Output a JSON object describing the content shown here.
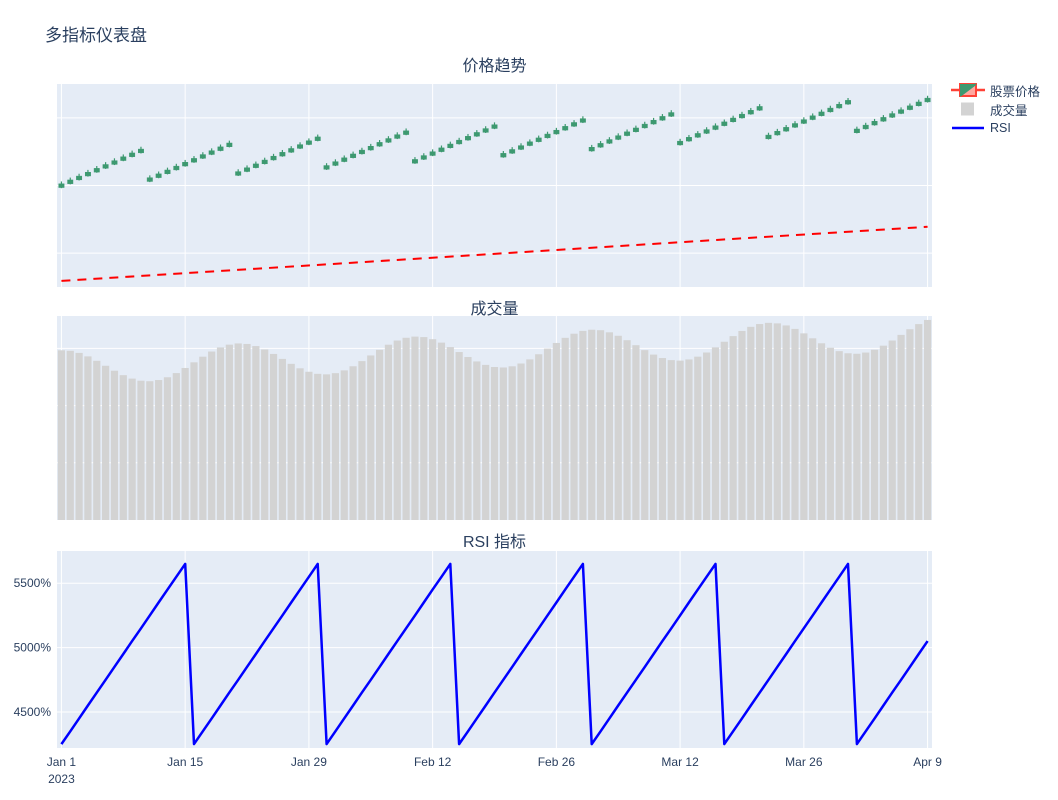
{
  "title": "多指标仪表盘",
  "colors": {
    "paper_bg": "#ffffff",
    "plot_bg": "#e5ecf6",
    "grid": "#ffffff",
    "text": "#2a3f5f",
    "candle_increasing": "#3d9970",
    "candle_decreasing": "#ff4136",
    "trend_line": "#ff0000",
    "volume_bar": "#d3d3d3",
    "rsi_line": "#0000ff"
  },
  "legend": {
    "items": [
      {
        "label": "股票价格",
        "marker": "candlestick-icon"
      },
      {
        "label": "成交量",
        "marker": "gray-bar-swatch"
      },
      {
        "label": "RSI",
        "marker": "blue-line-swatch"
      }
    ]
  },
  "x_axis": {
    "start_date": "Jan 1 2023",
    "end_date": "Apr 9 2023",
    "range": [
      -0.5,
      98.5
    ],
    "tick_days": [
      0,
      14,
      28,
      42,
      56,
      70,
      84,
      98
    ],
    "tick_labels": [
      "Jan 1",
      "Jan 15",
      "Jan 29",
      "Feb 12",
      "Feb 26",
      "Mar 12",
      "Mar 26",
      "Apr 9"
    ],
    "year_label": "2023"
  },
  "chart_data": [
    {
      "type": "candlestick",
      "title": "价格趋势",
      "series_name": "股票价格",
      "n_points": 99,
      "ylim": [
        90,
        120
      ],
      "y_gridlines": [
        95,
        105,
        115
      ],
      "open_offset": 0.1,
      "close_offset": 0.65,
      "high_offset": 1.0,
      "low": [
        104.6,
        105.17,
        105.74,
        106.31,
        106.88,
        107.45,
        108.02,
        108.59,
        109.16,
        109.73,
        105.5,
        106.07,
        106.64,
        107.21,
        107.78,
        108.35,
        108.92,
        109.49,
        110.06,
        110.63,
        106.4,
        106.97,
        107.54,
        108.11,
        108.68,
        109.25,
        109.82,
        110.39,
        110.96,
        111.53,
        107.3,
        107.87,
        108.44,
        109.01,
        109.58,
        110.15,
        110.72,
        111.29,
        111.86,
        112.43,
        108.2,
        108.77,
        109.34,
        109.91,
        110.48,
        111.05,
        111.62,
        112.19,
        112.76,
        113.33,
        109.1,
        109.67,
        110.24,
        110.81,
        111.38,
        111.95,
        112.52,
        113.09,
        113.66,
        114.23,
        110.0,
        110.57,
        111.14,
        111.71,
        112.28,
        112.85,
        113.42,
        113.99,
        114.56,
        115.13,
        110.9,
        111.47,
        112.04,
        112.61,
        113.18,
        113.75,
        114.32,
        114.89,
        115.46,
        116.03,
        111.8,
        112.37,
        112.94,
        113.51,
        114.08,
        114.65,
        115.22,
        115.79,
        116.36,
        116.93,
        112.7,
        113.27,
        113.84,
        114.41,
        114.98,
        115.55,
        116.12,
        116.69,
        117.26
      ],
      "trend_line": {
        "style": "dashed",
        "color": "#ff0000",
        "x": [
          0,
          98
        ],
        "values": [
          90.9,
          98.9
        ]
      }
    },
    {
      "type": "bar",
      "title": "成交量",
      "series_name": "成交量",
      "n_points": 99,
      "ylim": [
        0,
        107
      ],
      "y_gridlines": [
        30,
        60,
        90
      ],
      "values": [
        89.0,
        88.74,
        87.64,
        85.83,
        83.5,
        80.9,
        78.3,
        75.97,
        74.16,
        73.06,
        72.8,
        73.42,
        74.88,
        77.05,
        79.74,
        82.7,
        85.66,
        88.35,
        90.52,
        91.98,
        92.6,
        92.34,
        91.24,
        89.43,
        87.1,
        84.5,
        81.9,
        79.57,
        77.76,
        76.66,
        76.4,
        77.02,
        78.48,
        80.65,
        83.34,
        86.3,
        89.26,
        91.95,
        94.12,
        95.58,
        96.2,
        95.94,
        94.84,
        93.03,
        90.7,
        88.1,
        85.5,
        83.17,
        81.36,
        80.26,
        80.0,
        80.62,
        82.08,
        84.25,
        86.94,
        89.9,
        92.86,
        95.55,
        97.72,
        99.18,
        99.8,
        99.54,
        98.44,
        96.63,
        94.3,
        91.7,
        89.1,
        86.77,
        84.96,
        83.86,
        83.6,
        84.22,
        85.68,
        87.85,
        90.54,
        93.5,
        96.46,
        99.15,
        101.32,
        102.78,
        103.4,
        103.14,
        102.04,
        100.23,
        97.9,
        95.3,
        92.7,
        90.37,
        88.56,
        87.46,
        87.2,
        87.82,
        89.28,
        91.45,
        94.14,
        97.1,
        100.06,
        102.75,
        104.92
      ]
    },
    {
      "type": "line",
      "title": "RSI 指标",
      "series_name": "RSI",
      "n_points": 99,
      "ylim": [
        4220,
        5750
      ],
      "y_gridlines": [
        4500,
        5000,
        5500
      ],
      "y_tick_labels": [
        "4500%",
        "5000%",
        "5500%"
      ],
      "values": [
        4250,
        4350,
        4450,
        4550,
        4650,
        4750,
        4850,
        4950,
        5050,
        5150,
        5250,
        5350,
        5450,
        5550,
        5650,
        4250,
        4350,
        4450,
        4550,
        4650,
        4750,
        4850,
        4950,
        5050,
        5150,
        5250,
        5350,
        5450,
        5550,
        5650,
        4250,
        4350,
        4450,
        4550,
        4650,
        4750,
        4850,
        4950,
        5050,
        5150,
        5250,
        5350,
        5450,
        5550,
        5650,
        4250,
        4350,
        4450,
        4550,
        4650,
        4750,
        4850,
        4950,
        5050,
        5150,
        5250,
        5350,
        5450,
        5550,
        5650,
        4250,
        4350,
        4450,
        4550,
        4650,
        4750,
        4850,
        4950,
        5050,
        5150,
        5250,
        5350,
        5450,
        5550,
        5650,
        4250,
        4350,
        4450,
        4550,
        4650,
        4750,
        4850,
        4950,
        5050,
        5150,
        5250,
        5350,
        5450,
        5550,
        5650,
        4250,
        4350,
        4450,
        4550,
        4650,
        4750,
        4850,
        4950,
        5050
      ]
    }
  ]
}
